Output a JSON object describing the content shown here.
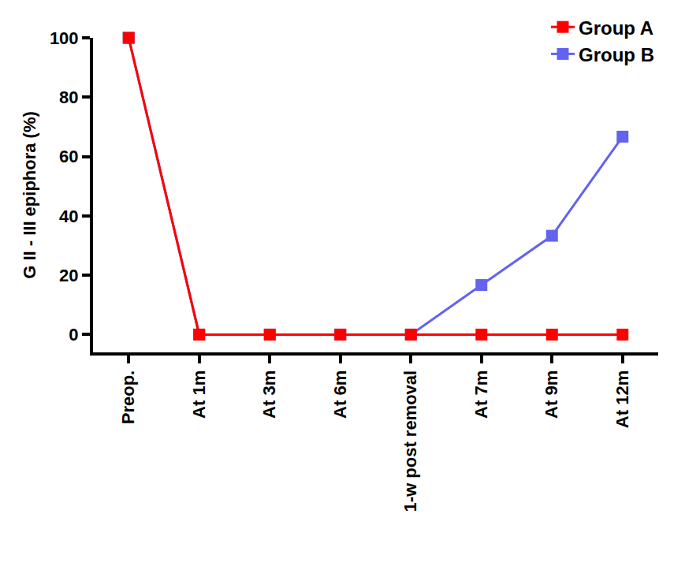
{
  "chart_data": {
    "type": "line",
    "y_label": "G II - III epiphora (%)",
    "categories": [
      "Preop.",
      "At 1m",
      "At 3m",
      "At 6m",
      "1-w post removal",
      "At 7m",
      "At 9m",
      "At 12m"
    ],
    "series": [
      {
        "name": "Group A",
        "color": "#ff0000",
        "marker": "square",
        "values": [
          100,
          0,
          0,
          0,
          0,
          0,
          0,
          0
        ]
      },
      {
        "name": "Group B",
        "color": "#6363f0",
        "marker": "square",
        "values": [
          100,
          0,
          0,
          0,
          0,
          16.7,
          33.3,
          66.7
        ]
      }
    ],
    "ylim": [
      -6,
      100
    ],
    "yticks": [
      0,
      20,
      40,
      60,
      80,
      100
    ],
    "grid": false,
    "legend": "top right"
  }
}
